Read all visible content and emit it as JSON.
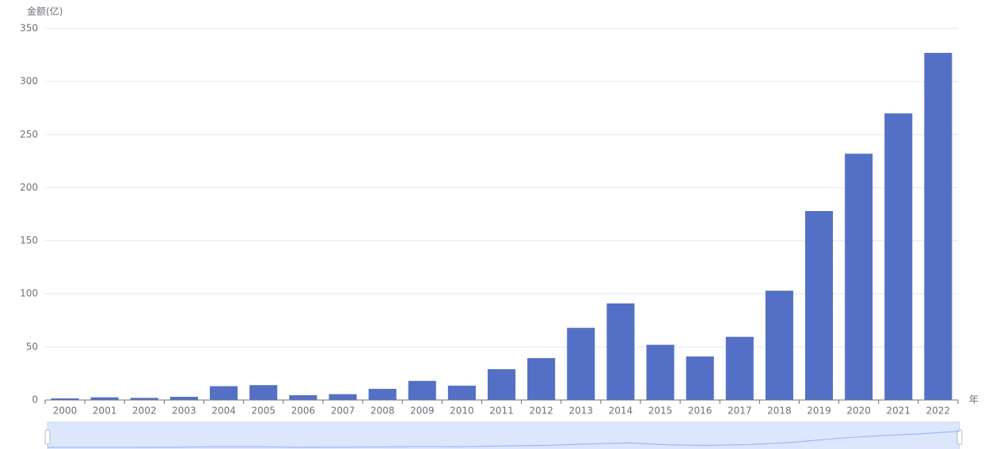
{
  "chart_data": {
    "type": "bar",
    "y_axis_label": "金额(亿)",
    "x_axis_label": "年",
    "categories": [
      "2000",
      "2001",
      "2002",
      "2003",
      "2004",
      "2005",
      "2006",
      "2007",
      "2008",
      "2009",
      "2010",
      "2011",
      "2012",
      "2013",
      "2014",
      "2015",
      "2016",
      "2017",
      "2018",
      "2019",
      "2020",
      "2021",
      "2022"
    ],
    "values": [
      1.5,
      2.5,
      2,
      3,
      13,
      14,
      4.5,
      5.5,
      10.5,
      18,
      13.5,
      29,
      39.5,
      68,
      91,
      52,
      41,
      59.5,
      103,
      178,
      232,
      270,
      327
    ],
    "color": "#5470c6",
    "ylim": [
      0,
      350
    ],
    "yticks": [
      0,
      50,
      100,
      150,
      200,
      250,
      300,
      350
    ],
    "grid": true
  }
}
